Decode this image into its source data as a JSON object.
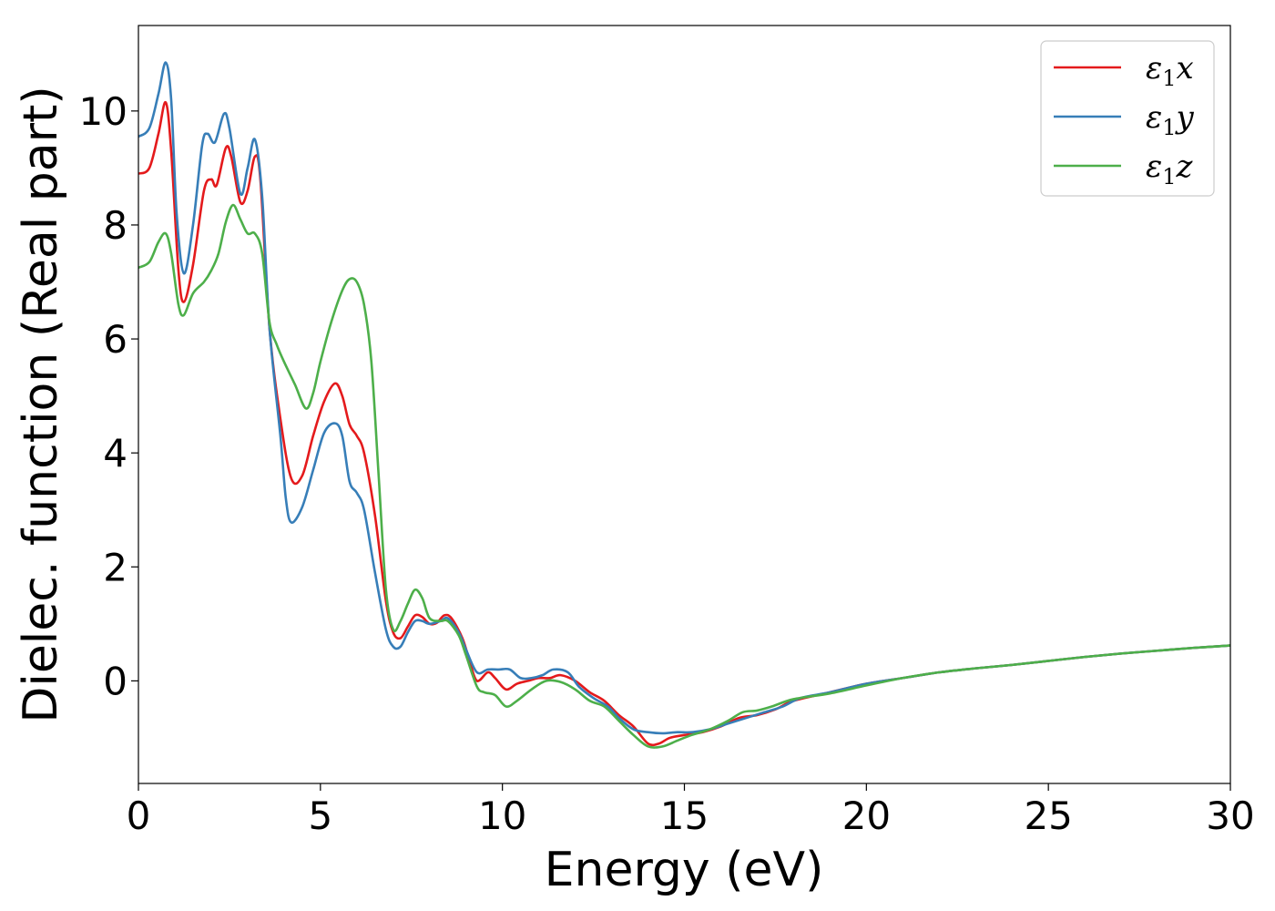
{
  "chart_data": {
    "type": "line",
    "xlabel": "Energy (eV)",
    "ylabel": "Dielec. function (Real part)",
    "xlim": [
      0,
      30
    ],
    "ylim": [
      -1.8,
      11.5
    ],
    "xticks": [
      0,
      5,
      10,
      15,
      20,
      25,
      30
    ],
    "xtick_labels": [
      "0",
      "5",
      "10",
      "15",
      "20",
      "25",
      "30"
    ],
    "yticks": [
      0,
      2,
      4,
      6,
      8,
      10
    ],
    "ytick_labels": [
      "0",
      "2",
      "4",
      "6",
      "8",
      "10"
    ],
    "grid": false,
    "legend": {
      "position": "top-right"
    },
    "series": [
      {
        "name": "ε₁x",
        "label_base": "ε",
        "label_sub": "1",
        "label_var": "x",
        "color": "#e41a1c",
        "points": [
          [
            0,
            8.9
          ],
          [
            0.3,
            9.0
          ],
          [
            0.55,
            9.6
          ],
          [
            0.75,
            10.15
          ],
          [
            0.9,
            9.3
          ],
          [
            1.1,
            7.2
          ],
          [
            1.25,
            6.65
          ],
          [
            1.5,
            7.3
          ],
          [
            1.8,
            8.6
          ],
          [
            2.0,
            8.8
          ],
          [
            2.15,
            8.7
          ],
          [
            2.4,
            9.35
          ],
          [
            2.55,
            9.2
          ],
          [
            2.8,
            8.4
          ],
          [
            3.0,
            8.6
          ],
          [
            3.2,
            9.2
          ],
          [
            3.35,
            8.8
          ],
          [
            3.6,
            6.2
          ],
          [
            3.9,
            4.6
          ],
          [
            4.2,
            3.55
          ],
          [
            4.5,
            3.6
          ],
          [
            4.8,
            4.3
          ],
          [
            5.1,
            4.9
          ],
          [
            5.4,
            5.22
          ],
          [
            5.6,
            5.0
          ],
          [
            5.8,
            4.5
          ],
          [
            6.0,
            4.3
          ],
          [
            6.2,
            4.0
          ],
          [
            6.5,
            2.9
          ],
          [
            6.8,
            1.4
          ],
          [
            7.0,
            0.85
          ],
          [
            7.2,
            0.75
          ],
          [
            7.4,
            0.95
          ],
          [
            7.6,
            1.15
          ],
          [
            7.8,
            1.12
          ],
          [
            8.0,
            1.0
          ],
          [
            8.2,
            1.02
          ],
          [
            8.4,
            1.15
          ],
          [
            8.6,
            1.1
          ],
          [
            8.9,
            0.75
          ],
          [
            9.1,
            0.35
          ],
          [
            9.3,
            0.0
          ],
          [
            9.6,
            0.15
          ],
          [
            9.8,
            0.05
          ],
          [
            10.1,
            -0.15
          ],
          [
            10.4,
            -0.05
          ],
          [
            10.7,
            0.0
          ],
          [
            11.0,
            0.05
          ],
          [
            11.3,
            0.05
          ],
          [
            11.6,
            0.1
          ],
          [
            12.0,
            0.0
          ],
          [
            12.4,
            -0.2
          ],
          [
            12.8,
            -0.35
          ],
          [
            13.2,
            -0.6
          ],
          [
            13.6,
            -0.8
          ],
          [
            14.0,
            -1.1
          ],
          [
            14.3,
            -1.1
          ],
          [
            14.6,
            -1.0
          ],
          [
            15.0,
            -0.95
          ],
          [
            15.5,
            -0.9
          ],
          [
            16.0,
            -0.8
          ],
          [
            16.5,
            -0.65
          ],
          [
            17.0,
            -0.6
          ],
          [
            17.5,
            -0.5
          ],
          [
            18.0,
            -0.35
          ],
          [
            19.0,
            -0.2
          ],
          [
            20.0,
            -0.05
          ],
          [
            21.0,
            0.05
          ],
          [
            22.0,
            0.15
          ],
          [
            23.0,
            0.22
          ],
          [
            24.0,
            0.28
          ],
          [
            25.0,
            0.35
          ],
          [
            26.0,
            0.42
          ],
          [
            27.0,
            0.48
          ],
          [
            28.0,
            0.53
          ],
          [
            29.0,
            0.58
          ],
          [
            30.0,
            0.62
          ]
        ]
      },
      {
        "name": "ε₁y",
        "label_base": "ε",
        "label_sub": "1",
        "label_var": "y",
        "color": "#377eb8",
        "points": [
          [
            0,
            9.55
          ],
          [
            0.3,
            9.7
          ],
          [
            0.55,
            10.3
          ],
          [
            0.75,
            10.85
          ],
          [
            0.9,
            10.2
          ],
          [
            1.05,
            8.2
          ],
          [
            1.25,
            7.15
          ],
          [
            1.5,
            8.0
          ],
          [
            1.75,
            9.4
          ],
          [
            1.9,
            9.6
          ],
          [
            2.1,
            9.45
          ],
          [
            2.35,
            9.95
          ],
          [
            2.5,
            9.7
          ],
          [
            2.8,
            8.55
          ],
          [
            3.0,
            9.0
          ],
          [
            3.2,
            9.5
          ],
          [
            3.4,
            8.5
          ],
          [
            3.6,
            6.2
          ],
          [
            3.9,
            4.3
          ],
          [
            4.05,
            3.2
          ],
          [
            4.2,
            2.78
          ],
          [
            4.5,
            3.05
          ],
          [
            4.8,
            3.7
          ],
          [
            5.1,
            4.35
          ],
          [
            5.4,
            4.52
          ],
          [
            5.6,
            4.3
          ],
          [
            5.8,
            3.5
          ],
          [
            6.0,
            3.3
          ],
          [
            6.2,
            3.0
          ],
          [
            6.5,
            1.9
          ],
          [
            6.8,
            0.9
          ],
          [
            7.0,
            0.6
          ],
          [
            7.2,
            0.6
          ],
          [
            7.4,
            0.85
          ],
          [
            7.6,
            1.05
          ],
          [
            7.8,
            1.05
          ],
          [
            8.0,
            1.0
          ],
          [
            8.3,
            1.05
          ],
          [
            8.5,
            1.1
          ],
          [
            8.8,
            0.85
          ],
          [
            9.0,
            0.55
          ],
          [
            9.3,
            0.15
          ],
          [
            9.6,
            0.2
          ],
          [
            9.9,
            0.2
          ],
          [
            10.2,
            0.2
          ],
          [
            10.5,
            0.05
          ],
          [
            10.8,
            0.05
          ],
          [
            11.1,
            0.1
          ],
          [
            11.4,
            0.2
          ],
          [
            11.8,
            0.15
          ],
          [
            12.1,
            -0.1
          ],
          [
            12.5,
            -0.3
          ],
          [
            12.9,
            -0.45
          ],
          [
            13.2,
            -0.65
          ],
          [
            13.6,
            -0.85
          ],
          [
            14.0,
            -0.9
          ],
          [
            14.4,
            -0.92
          ],
          [
            14.8,
            -0.9
          ],
          [
            15.2,
            -0.9
          ],
          [
            15.7,
            -0.85
          ],
          [
            16.2,
            -0.75
          ],
          [
            16.7,
            -0.65
          ],
          [
            17.2,
            -0.55
          ],
          [
            17.7,
            -0.45
          ],
          [
            18.2,
            -0.3
          ],
          [
            19.0,
            -0.2
          ],
          [
            20.0,
            -0.05
          ],
          [
            21.0,
            0.05
          ],
          [
            22.0,
            0.15
          ],
          [
            23.0,
            0.22
          ],
          [
            24.0,
            0.28
          ],
          [
            25.0,
            0.35
          ],
          [
            26.0,
            0.42
          ],
          [
            27.0,
            0.48
          ],
          [
            28.0,
            0.53
          ],
          [
            29.0,
            0.58
          ],
          [
            30.0,
            0.62
          ]
        ]
      },
      {
        "name": "ε₁z",
        "label_base": "ε",
        "label_sub": "1",
        "label_var": "z",
        "color": "#4daf4a",
        "points": [
          [
            0,
            7.25
          ],
          [
            0.3,
            7.35
          ],
          [
            0.55,
            7.7
          ],
          [
            0.75,
            7.85
          ],
          [
            0.9,
            7.5
          ],
          [
            1.1,
            6.6
          ],
          [
            1.25,
            6.42
          ],
          [
            1.5,
            6.8
          ],
          [
            1.8,
            7.0
          ],
          [
            2.0,
            7.2
          ],
          [
            2.2,
            7.5
          ],
          [
            2.4,
            8.05
          ],
          [
            2.6,
            8.35
          ],
          [
            2.8,
            8.1
          ],
          [
            3.0,
            7.85
          ],
          [
            3.2,
            7.85
          ],
          [
            3.4,
            7.5
          ],
          [
            3.6,
            6.3
          ],
          [
            3.8,
            5.9
          ],
          [
            4.0,
            5.6
          ],
          [
            4.3,
            5.2
          ],
          [
            4.6,
            4.78
          ],
          [
            4.8,
            5.05
          ],
          [
            5.0,
            5.6
          ],
          [
            5.3,
            6.3
          ],
          [
            5.6,
            6.85
          ],
          [
            5.8,
            7.05
          ],
          [
            6.0,
            7.0
          ],
          [
            6.2,
            6.6
          ],
          [
            6.4,
            5.6
          ],
          [
            6.6,
            3.6
          ],
          [
            6.8,
            1.6
          ],
          [
            7.0,
            0.9
          ],
          [
            7.2,
            1.05
          ],
          [
            7.4,
            1.35
          ],
          [
            7.6,
            1.6
          ],
          [
            7.8,
            1.45
          ],
          [
            8.0,
            1.1
          ],
          [
            8.3,
            1.05
          ],
          [
            8.5,
            1.05
          ],
          [
            8.8,
            0.8
          ],
          [
            9.0,
            0.45
          ],
          [
            9.3,
            -0.1
          ],
          [
            9.5,
            -0.2
          ],
          [
            9.8,
            -0.25
          ],
          [
            10.1,
            -0.45
          ],
          [
            10.4,
            -0.35
          ],
          [
            10.8,
            -0.15
          ],
          [
            11.2,
            0.0
          ],
          [
            11.6,
            -0.02
          ],
          [
            12.0,
            -0.15
          ],
          [
            12.4,
            -0.35
          ],
          [
            12.8,
            -0.45
          ],
          [
            13.2,
            -0.7
          ],
          [
            13.6,
            -0.95
          ],
          [
            14.0,
            -1.15
          ],
          [
            14.4,
            -1.15
          ],
          [
            14.8,
            -1.05
          ],
          [
            15.2,
            -0.95
          ],
          [
            15.7,
            -0.85
          ],
          [
            16.2,
            -0.7
          ],
          [
            16.6,
            -0.55
          ],
          [
            17.0,
            -0.52
          ],
          [
            17.4,
            -0.45
          ],
          [
            18.0,
            -0.32
          ],
          [
            19.0,
            -0.22
          ],
          [
            20.0,
            -0.08
          ],
          [
            21.0,
            0.05
          ],
          [
            22.0,
            0.15
          ],
          [
            23.0,
            0.22
          ],
          [
            24.0,
            0.28
          ],
          [
            25.0,
            0.35
          ],
          [
            26.0,
            0.42
          ],
          [
            27.0,
            0.48
          ],
          [
            28.0,
            0.53
          ],
          [
            29.0,
            0.58
          ],
          [
            30.0,
            0.62
          ]
        ]
      }
    ]
  }
}
